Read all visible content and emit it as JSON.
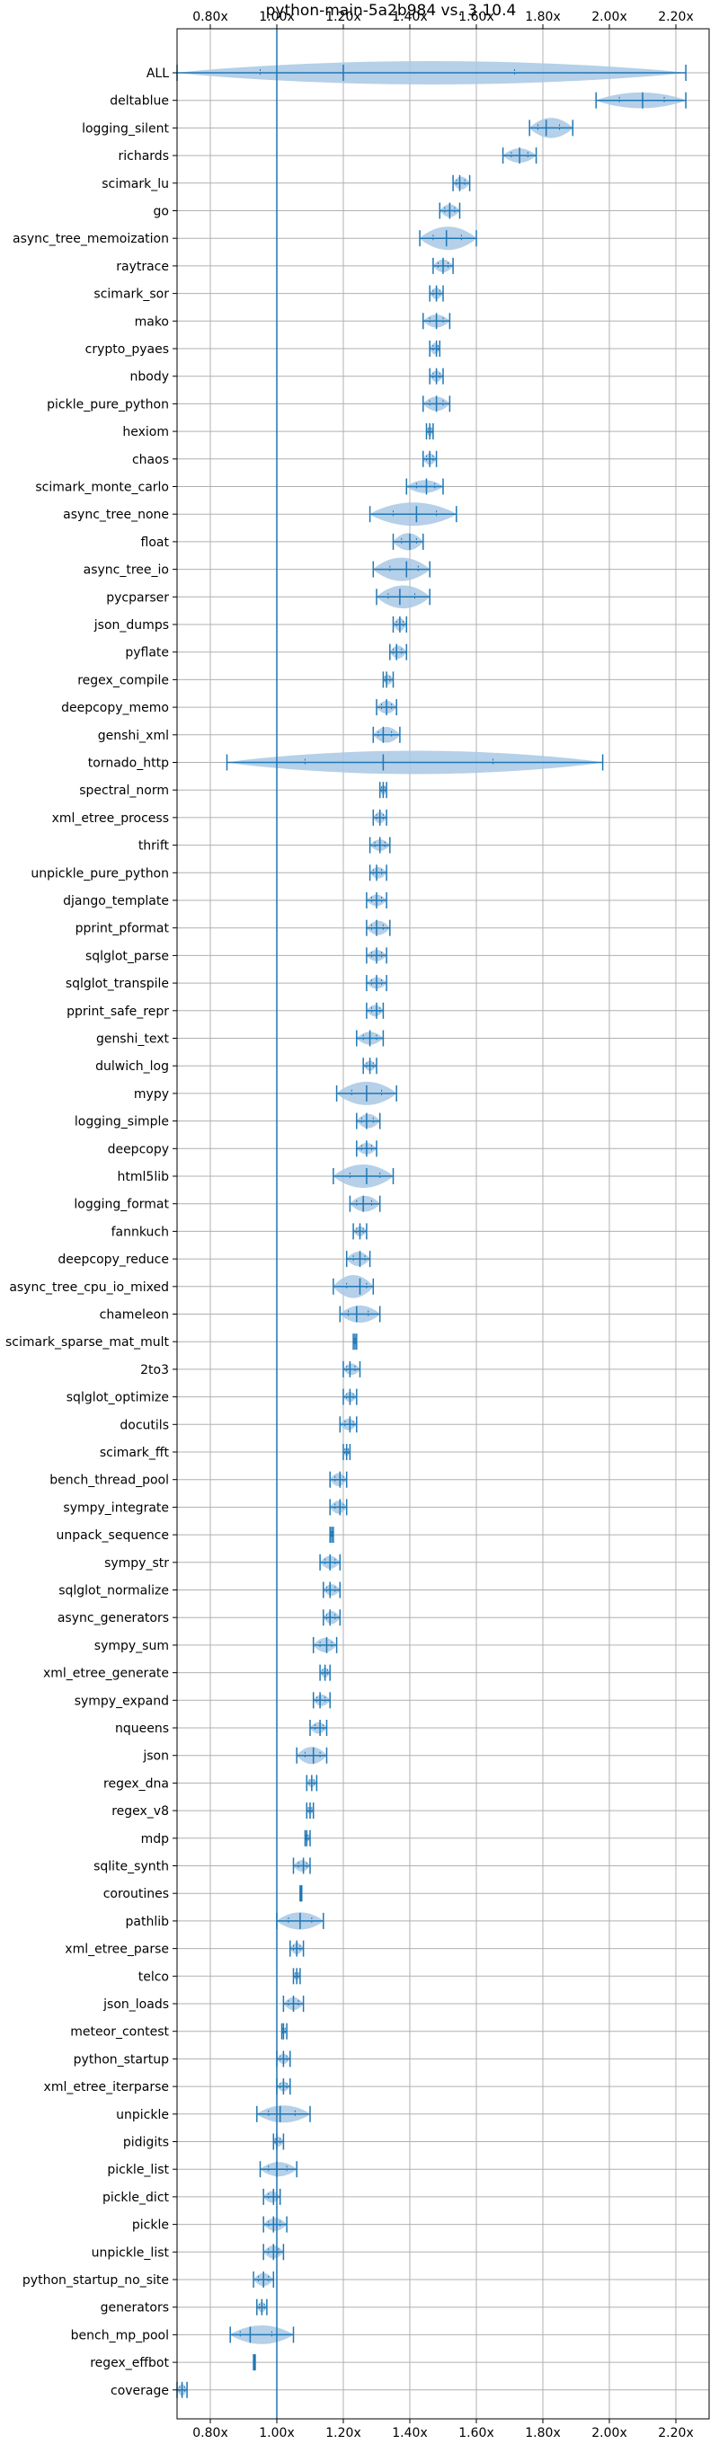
{
  "chart_data": {
    "type": "violin",
    "title": "python-main-5a2b984 vs. 3.10.4",
    "xlim": [
      0.7,
      2.3
    ],
    "xticks": [
      0.8,
      1.0,
      1.2,
      1.4,
      1.6,
      1.8,
      2.0,
      2.2
    ],
    "xtick_labels": [
      "0.80x",
      "1.00x",
      "1.20x",
      "1.40x",
      "1.60x",
      "1.80x",
      "2.00x",
      "2.20x"
    ],
    "baseline": 1.0,
    "grid": true,
    "colors": {
      "accent": "#1f77b4",
      "violin": "#a8c8e4",
      "grid": "#b0b0b0"
    },
    "benchmarks": [
      {
        "name": "ALL",
        "min": 0.7,
        "max": 2.23,
        "median": 1.2,
        "spread": 0.38
      },
      {
        "name": "deltablue",
        "min": 1.96,
        "max": 2.23,
        "median": 2.1,
        "spread": 0.22
      },
      {
        "name": "logging_silent",
        "min": 1.76,
        "max": 1.89,
        "median": 1.81,
        "spread": 0.28
      },
      {
        "name": "richards",
        "min": 1.68,
        "max": 1.78,
        "median": 1.73,
        "spread": 0.2
      },
      {
        "name": "scimark_lu",
        "min": 1.53,
        "max": 1.58,
        "median": 1.55,
        "spread": 0.18
      },
      {
        "name": "go",
        "min": 1.49,
        "max": 1.55,
        "median": 1.52,
        "spread": 0.18
      },
      {
        "name": "async_tree_memoization",
        "min": 1.43,
        "max": 1.6,
        "median": 1.51,
        "spread": 0.38
      },
      {
        "name": "raytrace",
        "min": 1.47,
        "max": 1.53,
        "median": 1.5,
        "spread": 0.18
      },
      {
        "name": "scimark_sor",
        "min": 1.46,
        "max": 1.5,
        "median": 1.48,
        "spread": 0.16
      },
      {
        "name": "mako",
        "min": 1.44,
        "max": 1.52,
        "median": 1.48,
        "spread": 0.18
      },
      {
        "name": "crypto_pyaes",
        "min": 1.46,
        "max": 1.49,
        "median": 1.48,
        "spread": 0.16
      },
      {
        "name": "nbody",
        "min": 1.46,
        "max": 1.5,
        "median": 1.48,
        "spread": 0.16
      },
      {
        "name": "pickle_pure_python",
        "min": 1.44,
        "max": 1.52,
        "median": 1.48,
        "spread": 0.2
      },
      {
        "name": "hexiom",
        "min": 1.45,
        "max": 1.47,
        "median": 1.46,
        "spread": 0.14
      },
      {
        "name": "chaos",
        "min": 1.44,
        "max": 1.48,
        "median": 1.46,
        "spread": 0.16
      },
      {
        "name": "scimark_monte_carlo",
        "min": 1.39,
        "max": 1.5,
        "median": 1.45,
        "spread": 0.18
      },
      {
        "name": "async_tree_none",
        "min": 1.28,
        "max": 1.54,
        "median": 1.42,
        "spread": 0.4
      },
      {
        "name": "float",
        "min": 1.35,
        "max": 1.44,
        "median": 1.4,
        "spread": 0.24
      },
      {
        "name": "async_tree_io",
        "min": 1.29,
        "max": 1.46,
        "median": 1.39,
        "spread": 0.34
      },
      {
        "name": "pycparser",
        "min": 1.3,
        "max": 1.46,
        "median": 1.37,
        "spread": 0.32
      },
      {
        "name": "json_dumps",
        "min": 1.35,
        "max": 1.39,
        "median": 1.37,
        "spread": 0.18
      },
      {
        "name": "pyflate",
        "min": 1.34,
        "max": 1.39,
        "median": 1.36,
        "spread": 0.18
      },
      {
        "name": "regex_compile",
        "min": 1.32,
        "max": 1.35,
        "median": 1.33,
        "spread": 0.14
      },
      {
        "name": "deepcopy_memo",
        "min": 1.3,
        "max": 1.36,
        "median": 1.33,
        "spread": 0.18
      },
      {
        "name": "genshi_xml",
        "min": 1.29,
        "max": 1.37,
        "median": 1.32,
        "spread": 0.22
      },
      {
        "name": "tornado_http",
        "min": 0.85,
        "max": 1.98,
        "median": 1.32,
        "spread": 0.38
      },
      {
        "name": "spectral_norm",
        "min": 1.31,
        "max": 1.33,
        "median": 1.32,
        "spread": 0.14
      },
      {
        "name": "xml_etree_process",
        "min": 1.29,
        "max": 1.33,
        "median": 1.31,
        "spread": 0.16
      },
      {
        "name": "thrift",
        "min": 1.28,
        "max": 1.34,
        "median": 1.31,
        "spread": 0.16
      },
      {
        "name": "unpickle_pure_python",
        "min": 1.28,
        "max": 1.33,
        "median": 1.3,
        "spread": 0.16
      },
      {
        "name": "django_template",
        "min": 1.27,
        "max": 1.33,
        "median": 1.3,
        "spread": 0.16
      },
      {
        "name": "pprint_pformat",
        "min": 1.27,
        "max": 1.34,
        "median": 1.3,
        "spread": 0.2
      },
      {
        "name": "sqlglot_parse",
        "min": 1.27,
        "max": 1.33,
        "median": 1.3,
        "spread": 0.16
      },
      {
        "name": "sqlglot_transpile",
        "min": 1.27,
        "max": 1.33,
        "median": 1.3,
        "spread": 0.16
      },
      {
        "name": "pprint_safe_repr",
        "min": 1.27,
        "max": 1.32,
        "median": 1.3,
        "spread": 0.16
      },
      {
        "name": "genshi_text",
        "min": 1.24,
        "max": 1.32,
        "median": 1.28,
        "spread": 0.18
      },
      {
        "name": "dulwich_log",
        "min": 1.26,
        "max": 1.3,
        "median": 1.28,
        "spread": 0.14
      },
      {
        "name": "mypy",
        "min": 1.18,
        "max": 1.36,
        "median": 1.27,
        "spread": 0.34
      },
      {
        "name": "logging_simple",
        "min": 1.24,
        "max": 1.31,
        "median": 1.27,
        "spread": 0.2
      },
      {
        "name": "deepcopy",
        "min": 1.24,
        "max": 1.3,
        "median": 1.27,
        "spread": 0.16
      },
      {
        "name": "html5lib",
        "min": 1.17,
        "max": 1.35,
        "median": 1.27,
        "spread": 0.34
      },
      {
        "name": "logging_format",
        "min": 1.22,
        "max": 1.31,
        "median": 1.26,
        "spread": 0.22
      },
      {
        "name": "fannkuch",
        "min": 1.23,
        "max": 1.27,
        "median": 1.25,
        "spread": 0.14
      },
      {
        "name": "deepcopy_reduce",
        "min": 1.21,
        "max": 1.28,
        "median": 1.25,
        "spread": 0.2
      },
      {
        "name": "async_tree_cpu_io_mixed",
        "min": 1.17,
        "max": 1.29,
        "median": 1.25,
        "spread": 0.32
      },
      {
        "name": "chameleon",
        "min": 1.19,
        "max": 1.31,
        "median": 1.24,
        "spread": 0.24
      },
      {
        "name": "scimark_sparse_mat_mult",
        "min": 1.23,
        "max": 1.24,
        "median": 1.235,
        "spread": 0.1
      },
      {
        "name": "2to3",
        "min": 1.2,
        "max": 1.25,
        "median": 1.22,
        "spread": 0.16
      },
      {
        "name": "sqlglot_optimize",
        "min": 1.2,
        "max": 1.24,
        "median": 1.22,
        "spread": 0.14
      },
      {
        "name": "docutils",
        "min": 1.19,
        "max": 1.24,
        "median": 1.22,
        "spread": 0.16
      },
      {
        "name": "scimark_fft",
        "min": 1.2,
        "max": 1.22,
        "median": 1.21,
        "spread": 0.12
      },
      {
        "name": "bench_thread_pool",
        "min": 1.16,
        "max": 1.21,
        "median": 1.19,
        "spread": 0.18
      },
      {
        "name": "sympy_integrate",
        "min": 1.16,
        "max": 1.21,
        "median": 1.19,
        "spread": 0.18
      },
      {
        "name": "unpack_sequence",
        "min": 1.16,
        "max": 1.17,
        "median": 1.165,
        "spread": 0.08
      },
      {
        "name": "sympy_str",
        "min": 1.13,
        "max": 1.19,
        "median": 1.16,
        "spread": 0.18
      },
      {
        "name": "sqlglot_normalize",
        "min": 1.14,
        "max": 1.19,
        "median": 1.16,
        "spread": 0.16
      },
      {
        "name": "async_generators",
        "min": 1.14,
        "max": 1.19,
        "median": 1.16,
        "spread": 0.18
      },
      {
        "name": "sympy_sum",
        "min": 1.11,
        "max": 1.18,
        "median": 1.15,
        "spread": 0.2
      },
      {
        "name": "xml_etree_generate",
        "min": 1.13,
        "max": 1.16,
        "median": 1.145,
        "spread": 0.14
      },
      {
        "name": "sympy_expand",
        "min": 1.11,
        "max": 1.16,
        "median": 1.13,
        "spread": 0.16
      },
      {
        "name": "nqueens",
        "min": 1.1,
        "max": 1.15,
        "median": 1.13,
        "spread": 0.16
      },
      {
        "name": "json",
        "min": 1.06,
        "max": 1.15,
        "median": 1.11,
        "spread": 0.24
      },
      {
        "name": "regex_dna",
        "min": 1.09,
        "max": 1.12,
        "median": 1.105,
        "spread": 0.12
      },
      {
        "name": "regex_v8",
        "min": 1.09,
        "max": 1.11,
        "median": 1.1,
        "spread": 0.1
      },
      {
        "name": "mdp",
        "min": 1.085,
        "max": 1.1,
        "median": 1.09,
        "spread": 0.1
      },
      {
        "name": "sqlite_synth",
        "min": 1.05,
        "max": 1.1,
        "median": 1.08,
        "spread": 0.16
      },
      {
        "name": "coroutines",
        "min": 1.07,
        "max": 1.075,
        "median": 1.072,
        "spread": 0.06
      },
      {
        "name": "pathlib",
        "min": 1.0,
        "max": 1.14,
        "median": 1.07,
        "spread": 0.24
      },
      {
        "name": "xml_etree_parse",
        "min": 1.04,
        "max": 1.08,
        "median": 1.06,
        "spread": 0.16
      },
      {
        "name": "telco",
        "min": 1.05,
        "max": 1.07,
        "median": 1.06,
        "spread": 0.12
      },
      {
        "name": "json_loads",
        "min": 1.02,
        "max": 1.08,
        "median": 1.05,
        "spread": 0.18
      },
      {
        "name": "meteor_contest",
        "min": 1.015,
        "max": 1.03,
        "median": 1.02,
        "spread": 0.08
      },
      {
        "name": "python_startup",
        "min": 1.0,
        "max": 1.04,
        "median": 1.02,
        "spread": 0.14
      },
      {
        "name": "xml_etree_iterparse",
        "min": 1.0,
        "max": 1.04,
        "median": 1.02,
        "spread": 0.14
      },
      {
        "name": "unpickle",
        "min": 0.94,
        "max": 1.1,
        "median": 1.01,
        "spread": 0.24
      },
      {
        "name": "pidigits",
        "min": 0.99,
        "max": 1.02,
        "median": 1.0,
        "spread": 0.14
      },
      {
        "name": "pickle_list",
        "min": 0.95,
        "max": 1.06,
        "median": 1.0,
        "spread": 0.2
      },
      {
        "name": "pickle_dict",
        "min": 0.96,
        "max": 1.01,
        "median": 0.99,
        "spread": 0.16
      },
      {
        "name": "pickle",
        "min": 0.96,
        "max": 1.03,
        "median": 0.99,
        "spread": 0.18
      },
      {
        "name": "unpickle_list",
        "min": 0.96,
        "max": 1.02,
        "median": 0.99,
        "spread": 0.18
      },
      {
        "name": "python_startup_no_site",
        "min": 0.93,
        "max": 0.99,
        "median": 0.96,
        "spread": 0.18
      },
      {
        "name": "generators",
        "min": 0.94,
        "max": 0.97,
        "median": 0.955,
        "spread": 0.14
      },
      {
        "name": "bench_mp_pool",
        "min": 0.86,
        "max": 1.05,
        "median": 0.92,
        "spread": 0.26
      },
      {
        "name": "regex_effbot",
        "min": 0.93,
        "max": 0.935,
        "median": 0.932,
        "spread": 0.06
      },
      {
        "name": "coverage",
        "min": 0.7,
        "max": 0.73,
        "median": 0.715,
        "spread": 0.16
      }
    ]
  }
}
